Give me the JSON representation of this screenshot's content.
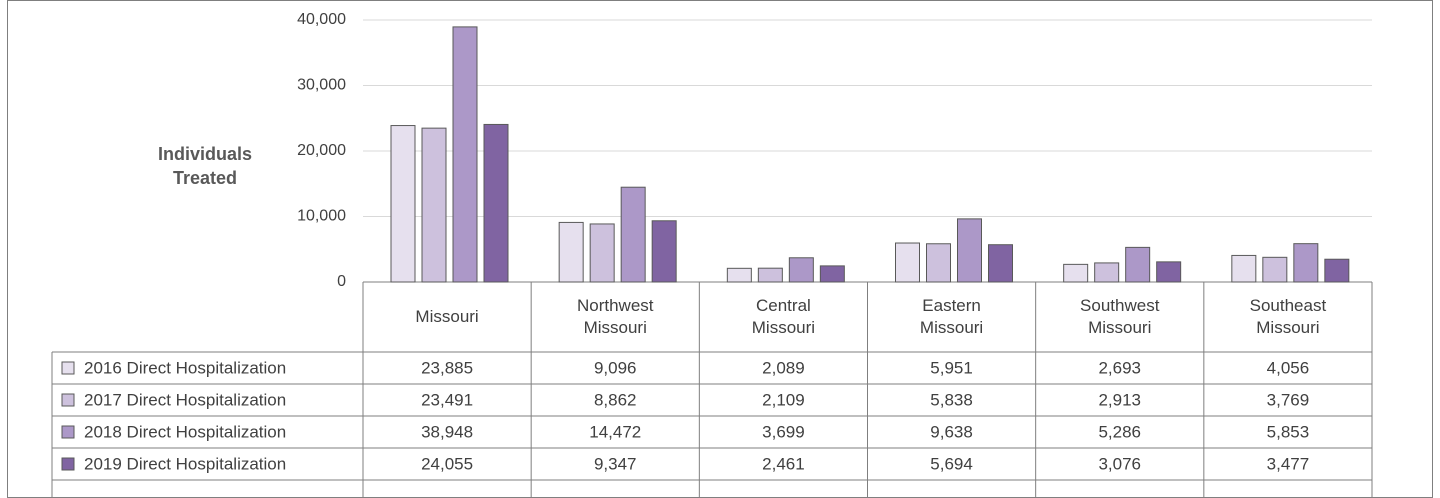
{
  "chart_data": {
    "type": "bar",
    "y_label": "Individuals Treated",
    "categories": [
      "Missouri",
      "Northwest Missouri",
      "Central Missouri",
      "Eastern Missouri",
      "Southwest Missouri",
      "Southeast Missouri"
    ],
    "series": [
      {
        "name": "2016 Direct Hospitalization",
        "color": "#e6e0ee",
        "values": [
          23885,
          9096,
          2089,
          5951,
          2693,
          4056
        ],
        "value_labels": [
          "23,885",
          "9,096",
          "2,089",
          "5,951",
          "2,693",
          "4,056"
        ]
      },
      {
        "name": "2017 Direct Hospitalization",
        "color": "#cdc1dd",
        "values": [
          23491,
          8862,
          2109,
          5838,
          2913,
          3769
        ],
        "value_labels": [
          "23,491",
          "8,862",
          "2,109",
          "5,838",
          "2,913",
          "3,769"
        ]
      },
      {
        "name": "2018 Direct Hospitalization",
        "color": "#ac98c8",
        "values": [
          38948,
          14472,
          3699,
          9638,
          5286,
          5853
        ],
        "value_labels": [
          "38,948",
          "14,472",
          "3,699",
          "9,638",
          "5,286",
          "5,853"
        ]
      },
      {
        "name": "2019 Direct Hospitalization",
        "color": "#8064a2",
        "values": [
          24055,
          9347,
          2461,
          5694,
          3076,
          3477
        ],
        "value_labels": [
          "24,055",
          "9,347",
          "2,461",
          "5,694",
          "3,076",
          "3,477"
        ]
      }
    ],
    "ylim": [
      0,
      40000
    ],
    "yticks": [
      0,
      {
        "value": 10000,
        "label": "10,000"
      },
      {
        "value": 20000,
        "label": "20,000"
      },
      {
        "value": 30000,
        "label": "30,000"
      },
      {
        "value": 40000,
        "label": "40,000"
      }
    ],
    "grid": true
  }
}
